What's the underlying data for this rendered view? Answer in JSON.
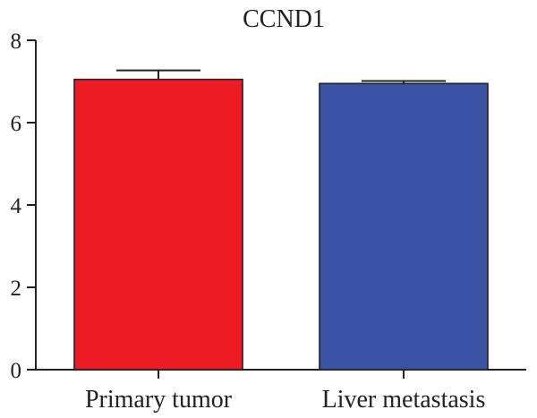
{
  "chart_data": {
    "type": "bar",
    "title": "CCND1",
    "xlabel": "",
    "ylabel": "",
    "categories": [
      "Primary tumor",
      "Liver metastasis"
    ],
    "values": [
      7.05,
      6.95
    ],
    "errors": [
      0.22,
      0.06
    ],
    "ylim": [
      0,
      8
    ],
    "yticks": [
      0,
      2,
      4,
      6,
      8
    ],
    "grid": false,
    "legend": "none",
    "colors": [
      "#ed1c24",
      "#3a53a4"
    ]
  }
}
